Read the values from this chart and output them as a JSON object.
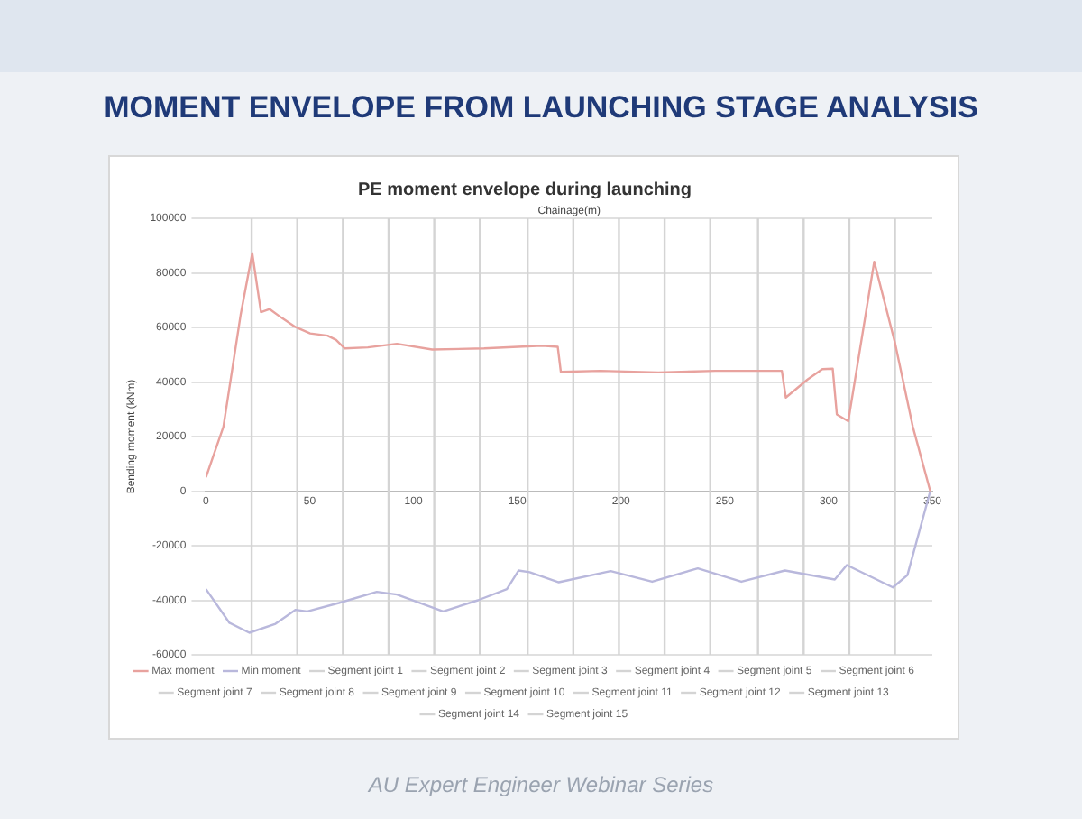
{
  "chart_data": {
    "type": "line",
    "title": "MOMENT ENVELOPE FROM LAUNCHING STAGE ANALYSIS",
    "subtitle": "PE moment envelope during launching",
    "xlabel": "Chainage(m)",
    "ylabel": "Bending moment (kNm)",
    "annotations": [
      "AU Expert Engineer Webinar Series"
    ],
    "xlim": [
      0,
      350
    ],
    "xticks": [
      0,
      50,
      100,
      150,
      200,
      250,
      300,
      350
    ],
    "ylim": [
      -60000,
      100000
    ],
    "yticks": [
      -60000,
      -40000,
      -20000,
      0,
      20000,
      40000,
      60000,
      80000,
      100000
    ],
    "grid": "y",
    "legend": "bottom",
    "marker": "none",
    "line_style": "solid",
    "series": [
      {
        "name": "Max moment",
        "color": "#e8a29e",
        "x": [
          0,
          8.4,
          16.7,
          22.3,
          26.5,
          30.7,
          36.3,
          43.2,
          50.2,
          58.6,
          62.7,
          66.9,
          78,
          92,
          109,
          134,
          162,
          169.5,
          171,
          190,
          218,
          245.4,
          277.5,
          279.4,
          290,
          297,
          302,
          304,
          309.5,
          322,
          332,
          340.6,
          349
        ],
        "values": [
          5100,
          23600,
          64600,
          87200,
          65600,
          66700,
          63600,
          60100,
          57800,
          57000,
          55400,
          52300,
          52700,
          54000,
          51900,
          52300,
          53300,
          52900,
          43700,
          44100,
          43500,
          44100,
          44100,
          34300,
          41000,
          44700,
          44900,
          28100,
          25600,
          84100,
          54400,
          23600,
          0
        ]
      },
      {
        "name": "Min moment",
        "color": "#b9b8dc",
        "x": [
          0,
          11.2,
          20.9,
          33.5,
          43.2,
          48.8,
          64,
          82.3,
          92,
          114.3,
          131,
          145,
          150.6,
          156,
          170,
          195,
          215,
          237,
          258,
          279,
          303,
          308.8,
          331,
          338,
          349
        ],
        "values": [
          -35900,
          -48200,
          -51900,
          -48600,
          -43500,
          -44100,
          -41000,
          -36900,
          -37900,
          -44100,
          -40000,
          -35900,
          -29100,
          -29700,
          -33400,
          -29300,
          -33200,
          -28300,
          -33200,
          -29100,
          -32400,
          -27100,
          -35300,
          -30800,
          0
        ]
      },
      {
        "name": "Segment joint 1",
        "color": "#d4d4d4",
        "x": [
          22,
          22
        ],
        "values": [
          -60000,
          100000
        ]
      },
      {
        "name": "Segment joint 2",
        "color": "#d4d4d4",
        "x": [
          44,
          44
        ],
        "values": [
          -60000,
          100000
        ]
      },
      {
        "name": "Segment joint 3",
        "color": "#d4d4d4",
        "x": [
          66,
          66
        ],
        "values": [
          -60000,
          100000
        ]
      },
      {
        "name": "Segment joint 4",
        "color": "#d4d4d4",
        "x": [
          88,
          88
        ],
        "values": [
          -60000,
          100000
        ]
      },
      {
        "name": "Segment joint 5",
        "color": "#d4d4d4",
        "x": [
          110,
          110
        ],
        "values": [
          -60000,
          100000
        ]
      },
      {
        "name": "Segment joint 6",
        "color": "#d4d4d4",
        "x": [
          132,
          132
        ],
        "values": [
          -60000,
          100000
        ]
      },
      {
        "name": "Segment joint 7",
        "color": "#d4d4d4",
        "x": [
          155,
          155
        ],
        "values": [
          -60000,
          100000
        ]
      },
      {
        "name": "Segment joint 8",
        "color": "#d4d4d4",
        "x": [
          177,
          177
        ],
        "values": [
          -60000,
          100000
        ]
      },
      {
        "name": "Segment joint 9",
        "color": "#d4d4d4",
        "x": [
          199,
          199
        ],
        "values": [
          -60000,
          100000
        ]
      },
      {
        "name": "Segment joint 10",
        "color": "#d4d4d4",
        "x": [
          221,
          221
        ],
        "values": [
          -60000,
          100000
        ]
      },
      {
        "name": "Segment joint 11",
        "color": "#d4d4d4",
        "x": [
          243,
          243
        ],
        "values": [
          -60000,
          100000
        ]
      },
      {
        "name": "Segment joint 12",
        "color": "#d4d4d4",
        "x": [
          266,
          266
        ],
        "values": [
          -60000,
          100000
        ]
      },
      {
        "name": "Segment joint 13",
        "color": "#d4d4d4",
        "x": [
          288,
          288
        ],
        "values": [
          -60000,
          100000
        ]
      },
      {
        "name": "Segment joint 14",
        "color": "#d4d4d4",
        "x": [
          310,
          310
        ],
        "values": [
          -60000,
          100000
        ]
      },
      {
        "name": "Segment joint 15",
        "color": "#d4d4d4",
        "x": [
          332,
          332
        ],
        "values": [
          -60000,
          100000
        ]
      }
    ]
  }
}
